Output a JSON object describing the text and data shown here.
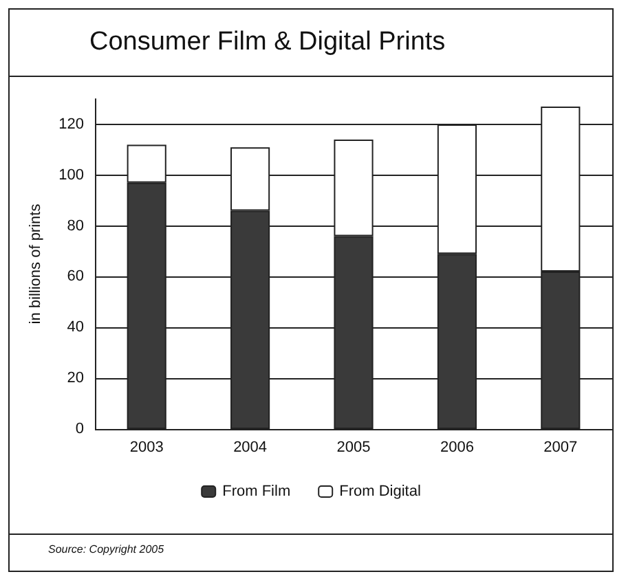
{
  "chart_data": {
    "type": "bar",
    "title": "Consumer Film & Digital Prints",
    "ylabel": "in billions of prints",
    "categories": [
      "2003",
      "2004",
      "2005",
      "2006",
      "2007"
    ],
    "series": [
      {
        "name": "From Film",
        "color": "#3a3a3a",
        "values": [
          97,
          86,
          76,
          69,
          62
        ]
      },
      {
        "name": "From Digital",
        "color": "#ffffff",
        "values": [
          15,
          25,
          38,
          51,
          65
        ]
      }
    ],
    "stacked": true,
    "ylim": [
      0,
      130
    ],
    "yticks": [
      0,
      20,
      40,
      60,
      80,
      100,
      120
    ],
    "grid": "y",
    "legend": "bottom",
    "annotations": [
      "Source: Copyright 2005"
    ]
  }
}
